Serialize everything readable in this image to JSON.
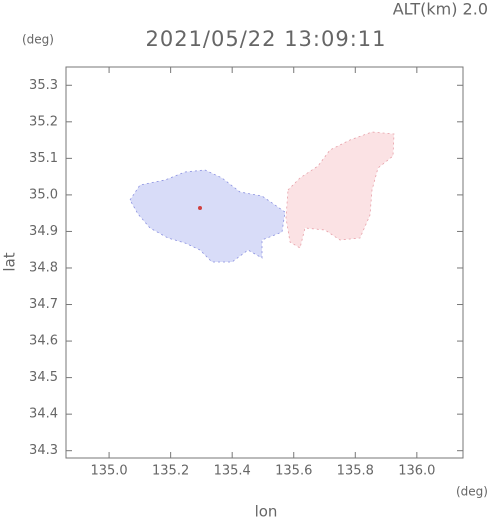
{
  "chart_data": {
    "type": "map",
    "title": "2021/05/22 13:09:11",
    "subtitle": "ALT(km) 2.0",
    "y_unit": "(deg)",
    "x_unit": "(deg)",
    "xlabel": "lon",
    "ylabel": "lat",
    "xlim": [
      134.86,
      136.15
    ],
    "ylim": [
      34.28,
      35.35
    ],
    "xticks": [
      {
        "value": 135,
        "label": "135.0"
      },
      135.2,
      135.4,
      135.6,
      135.8,
      {
        "value": 136,
        "label": "136.0"
      }
    ],
    "yticks": [
      34.3,
      34.4,
      34.5,
      34.6,
      34.7,
      34.8,
      34.9,
      {
        "value": 35,
        "label": "35.0"
      },
      35.1,
      35.2,
      35.3
    ]
  }
}
